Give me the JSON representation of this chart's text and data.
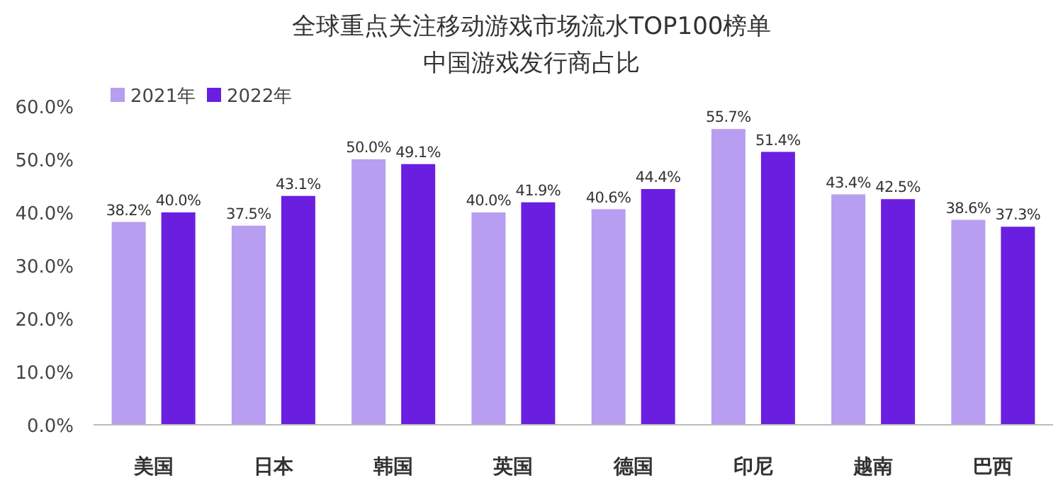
{
  "chart_data": {
    "type": "bar",
    "title": "全球重点关注移动游戏市场流水TOP100榜单",
    "subtitle": "中国游戏发行商占比",
    "categories": [
      "美国",
      "日本",
      "韩国",
      "英国",
      "德国",
      "印尼",
      "越南",
      "巴西"
    ],
    "series": [
      {
        "name": "2021年",
        "color": "#b79ef0",
        "values": [
          38.2,
          37.5,
          50.0,
          40.0,
          40.6,
          55.7,
          43.4,
          38.6
        ],
        "value_labels": [
          "38.2%",
          "37.5%",
          "50.0%",
          "40.0%",
          "40.6%",
          "55.7%",
          "43.4%",
          "38.6%"
        ]
      },
      {
        "name": "2022年",
        "color": "#6a1fe0",
        "values": [
          40.0,
          43.1,
          49.1,
          41.9,
          44.4,
          51.4,
          42.5,
          37.3
        ],
        "value_labels": [
          "40.0%",
          "43.1%",
          "49.1%",
          "41.9%",
          "44.4%",
          "51.4%",
          "42.5%",
          "37.3%"
        ]
      }
    ],
    "ylim": [
      0,
      60
    ],
    "yticks": [
      {
        "value": 0,
        "label": "0.0%"
      },
      {
        "value": 10,
        "label": "10.0%"
      },
      {
        "value": 20,
        "label": "20.0%"
      },
      {
        "value": 30,
        "label": "30.0%"
      },
      {
        "value": 40,
        "label": "40.0%"
      },
      {
        "value": 50,
        "label": "50.0%"
      },
      {
        "value": 60,
        "label": "60.0%"
      }
    ],
    "legend": "top left"
  }
}
